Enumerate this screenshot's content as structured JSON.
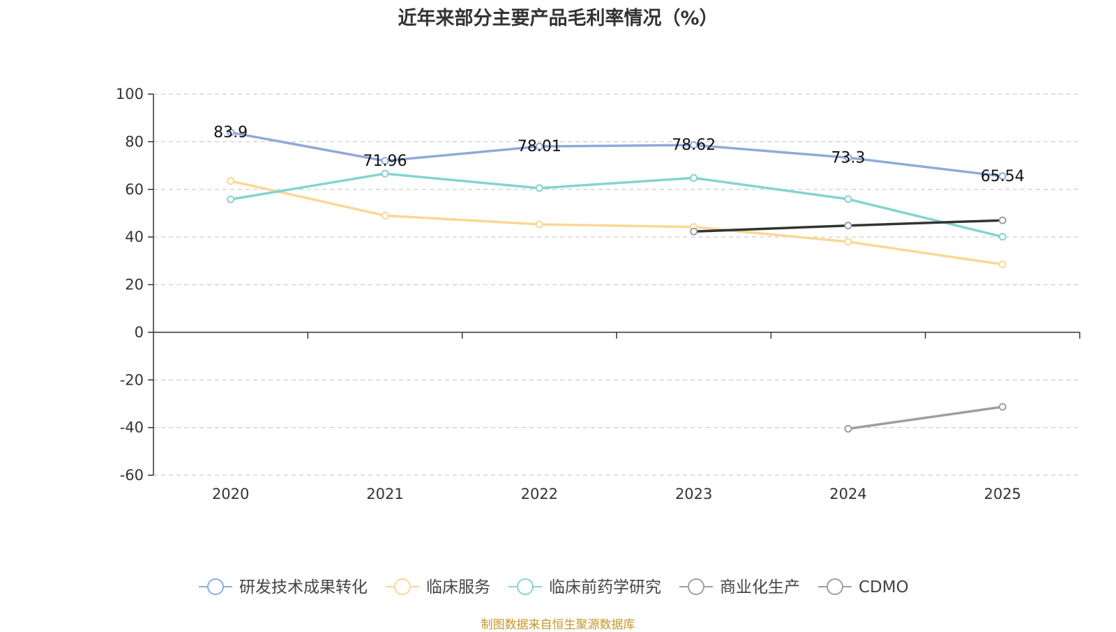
{
  "chart_data": {
    "type": "line",
    "title": "近年来部分主要产品毛利率情况（%）",
    "x": [
      "2020",
      "2021",
      "2022",
      "2023",
      "2024",
      "2025"
    ],
    "y_ticks": [
      100,
      80,
      60,
      40,
      20,
      0,
      -20,
      -40,
      -60
    ],
    "ylim": [
      -60,
      100
    ],
    "grid": true,
    "legend_position": "bottom",
    "series": [
      {
        "name": "研发技术成果转化",
        "color": "#8faad8",
        "values": [
          83.9,
          71.96,
          78.01,
          78.62,
          73.3,
          65.54
        ],
        "labels": [
          "83.9",
          "71.96",
          "78.01",
          "78.62",
          "73.3",
          "65.54"
        ]
      },
      {
        "name": "临床服务",
        "color": "#fbd795",
        "values": [
          63.5,
          49,
          45.3,
          44.2,
          38,
          28.5
        ]
      },
      {
        "name": "临床前药学研究",
        "color": "#84d4d0",
        "values": [
          55.8,
          66.6,
          60.5,
          64.8,
          55.9,
          40.1
        ]
      },
      {
        "name": "商业化生产",
        "color": "#333333",
        "values": [
          null,
          null,
          null,
          42.3,
          44.8,
          47
        ]
      },
      {
        "name": "CDMO",
        "color": "#9e9e9e",
        "values": [
          null,
          null,
          null,
          null,
          -40.5,
          -31.3
        ]
      }
    ],
    "source": "制图数据来自恒生聚源数据库"
  }
}
